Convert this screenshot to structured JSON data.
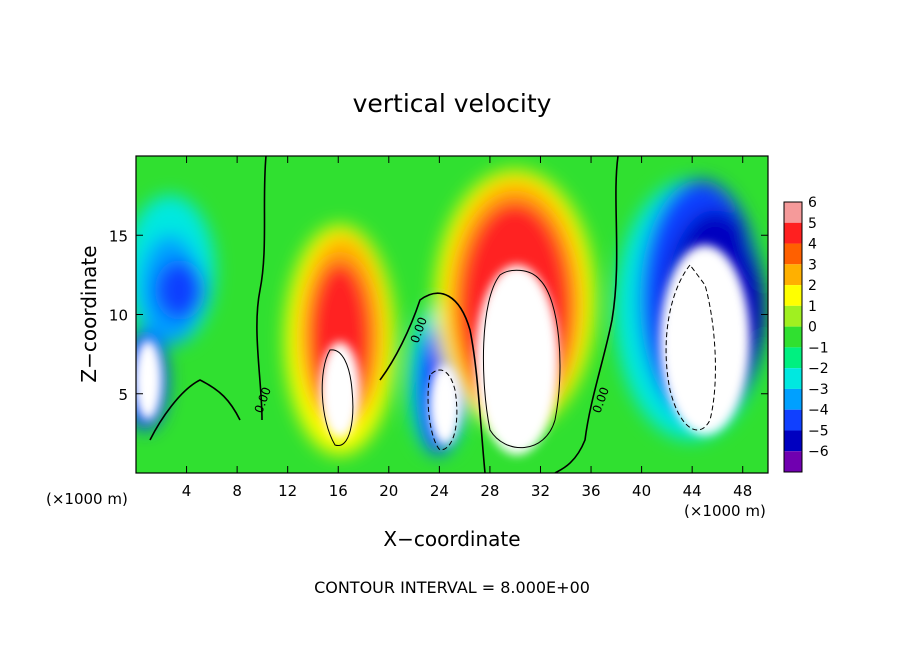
{
  "chart_data": {
    "type": "heatmap",
    "title": "vertical velocity",
    "xlabel": "X−coordinate",
    "ylabel": "Z−coordinate",
    "x_unit": "(×1000 m)",
    "footer": "CONTOUR INTERVAL = 8.000E+00",
    "xlim": [
      0,
      50
    ],
    "ylim": [
      0,
      20
    ],
    "x_ticks": [
      4,
      8,
      12,
      16,
      20,
      24,
      28,
      32,
      36,
      40,
      44,
      48
    ],
    "y_ticks": [
      5,
      10,
      15
    ],
    "colorbar": {
      "levels": [
        6,
        5,
        4,
        3,
        2,
        1,
        0,
        -1,
        -2,
        -3,
        -4,
        -5,
        -6
      ],
      "level_labels": [
        "6",
        "5",
        "4",
        "3",
        "2",
        "1",
        "0",
        "−1",
        "−2",
        "−3",
        "−4",
        "−5",
        "−6"
      ],
      "colors": [
        "#f59a9a",
        "#ff2020",
        "#ff6000",
        "#ffb000",
        "#ffff00",
        "#a0f020",
        "#30e030",
        "#00f080",
        "#00e8e0",
        "#00a0ff",
        "#1040ff",
        "#0000c0",
        "#7000b0"
      ]
    },
    "contour_label": "0.00",
    "features": [
      {
        "kind": "updraft",
        "x_center": 30,
        "z_center": 9,
        "peak": "above 6"
      },
      {
        "kind": "updraft",
        "x_center": 16,
        "z_center": 9,
        "peak": "above 6"
      },
      {
        "kind": "downdraft",
        "x_center": 23.5,
        "z_center": 5,
        "peak": "below -6"
      },
      {
        "kind": "downdraft",
        "x_center": 44.5,
        "z_center": 8,
        "peak": "below -6"
      },
      {
        "kind": "downdraft",
        "x_center": 3,
        "z_center": 10,
        "peak": "-5"
      },
      {
        "kind": "downdraft",
        "x_center": 1,
        "z_center": 5,
        "peak": "below -6"
      }
    ]
  }
}
